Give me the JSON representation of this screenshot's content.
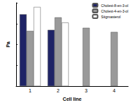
{
  "chart_data": {
    "type": "bar",
    "x_label": "Cell line",
    "y_label": "Pa",
    "categories": [
      "1",
      "2",
      "3",
      "4"
    ],
    "series": [
      {
        "name": "Cholest-8-en-3-ol",
        "color": "#1f2466",
        "values": [
          0.69,
          0.54,
          null,
          null
        ]
      },
      {
        "name": "Cholest-4-en-3-ol",
        "color": "#9a9a9a",
        "values": [
          0.53,
          0.66,
          0.56,
          0.52
        ]
      },
      {
        "name": "Stigmasterol",
        "color": "#ffffff",
        "values": [
          0.76,
          0.61,
          null,
          null
        ]
      }
    ],
    "ylim": [
      0,
      0.8
    ],
    "yticks": [
      0,
      0.2,
      0.4,
      0.6,
      0.8
    ],
    "tick_labels": "x",
    "grid": false,
    "legend": "top-right"
  }
}
